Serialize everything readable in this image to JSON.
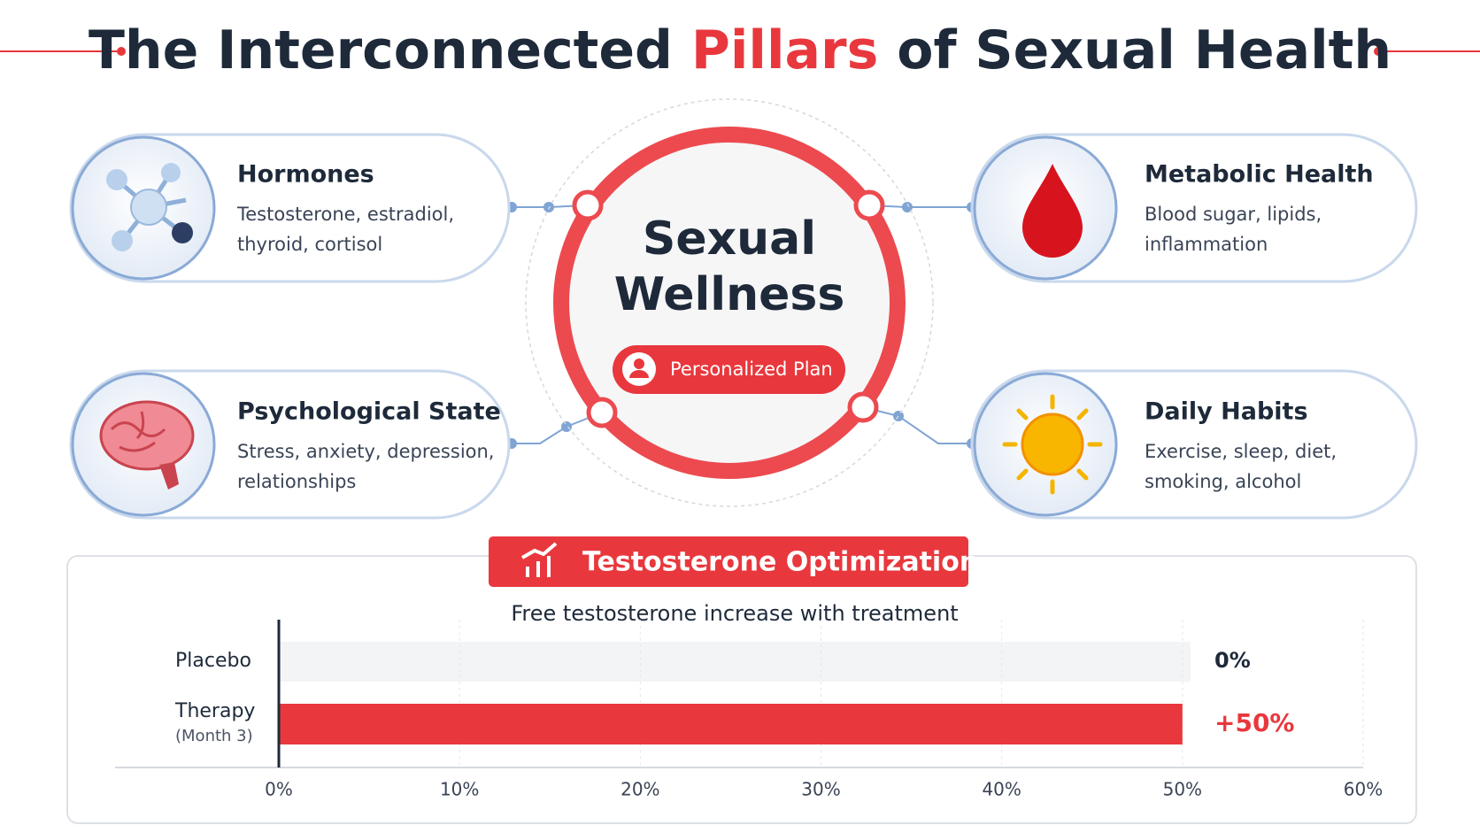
{
  "header": {
    "title": {
      "before": "The Interconnected ",
      "highlight": "Pillars",
      "after": " of Sexual Health"
    }
  },
  "pillars": [
    {
      "title": "Hormones",
      "lines": [
        "Testosterone, estradiol,",
        "thyroid, cortisol"
      ]
    },
    {
      "title": "Metabolic Health",
      "lines": [
        "Blood sugar, lipids,",
        "inflammation"
      ]
    },
    {
      "title": "Psychological State",
      "lines": [
        "Stress, anxiety, depression,",
        "relationships"
      ]
    },
    {
      "title": "Daily Habits",
      "lines": [
        "Exercise, sleep, diet,",
        "smoking, alcohol"
      ]
    }
  ],
  "center": {
    "lines": [
      "Sexual",
      "Wellness"
    ],
    "badge": "Personalized Plan"
  },
  "chart_data": {
    "type": "bar",
    "orientation": "horizontal",
    "title": "Testosterone Optimization",
    "subtitle": "Free testosterone increase with treatment",
    "categories": [
      "Placebo",
      "Therapy"
    ],
    "category_notes": [
      null,
      "(Month 3)"
    ],
    "values": [
      0,
      50
    ],
    "value_labels": [
      "0%",
      "+50%"
    ],
    "color": "#e8383d",
    "xlim": [
      0,
      60
    ],
    "xticks": [
      {
        "value": 0,
        "label": "0%"
      },
      {
        "value": 10,
        "label": "10%"
      },
      {
        "value": 20,
        "label": "20%"
      },
      {
        "value": 30,
        "label": "30%"
      },
      {
        "value": 40,
        "label": "40%"
      },
      {
        "value": 50,
        "label": "50%"
      },
      {
        "value": 60,
        "label": "60%"
      }
    ],
    "grid": true
  }
}
